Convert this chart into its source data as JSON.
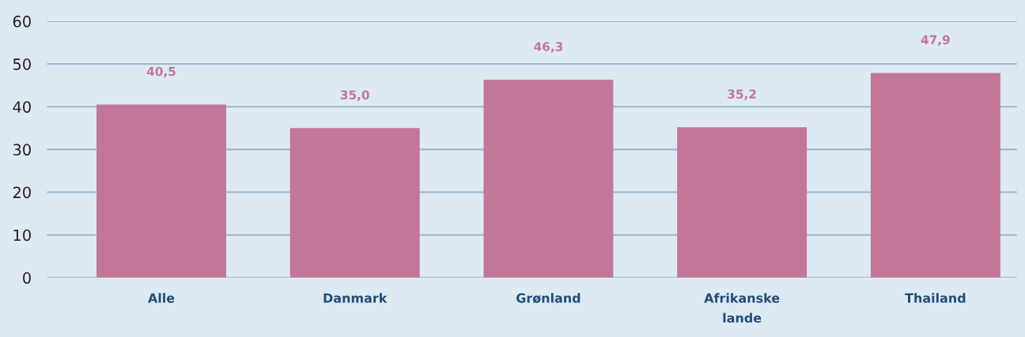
{
  "chart_data": {
    "type": "bar",
    "categories": [
      "Alle",
      "Danmark",
      "Grønland",
      "Afrikanske\nlande",
      "Thailand"
    ],
    "values": [
      40.5,
      35.0,
      46.3,
      35.2,
      47.9
    ],
    "value_labels": [
      "40,5",
      "35,0",
      "46,3",
      "35,2",
      "47,9"
    ],
    "color": "#c27799",
    "ylim": [
      0,
      60
    ],
    "yticks": [
      0,
      10,
      20,
      30,
      40,
      50,
      60
    ],
    "grid": "y",
    "legend": false
  }
}
